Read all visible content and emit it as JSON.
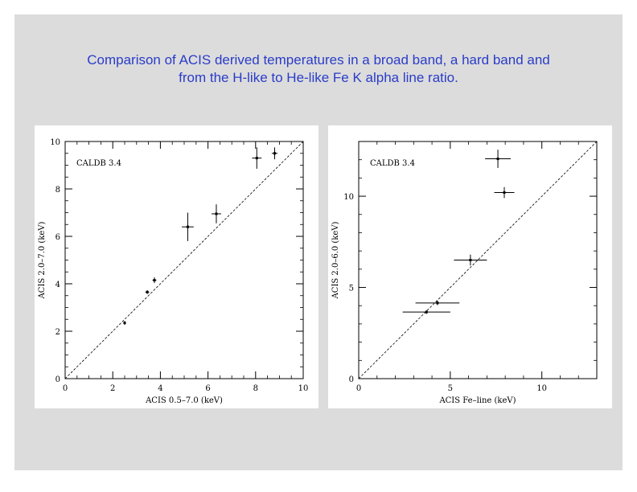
{
  "title": {
    "line1": "Comparison of ACIS derived temperatures in a broad band, a hard band and",
    "line2": "from the H-like to He-like Fe K alpha line ratio."
  },
  "chart_data": [
    {
      "type": "scatter",
      "annotation": "CALDB 3.4",
      "xlabel": "ACIS 0.5–7.0 (keV)",
      "ylabel": "ACIS 2.0–7.0 (keV)",
      "xlim": [
        0,
        10
      ],
      "ylim": [
        0,
        10
      ],
      "xticks": [
        0,
        2,
        4,
        6,
        8,
        10
      ],
      "yticks": [
        0,
        2,
        4,
        6,
        8,
        10
      ],
      "reference_line": "y = x (dashed)",
      "points": [
        {
          "x": 2.5,
          "y": 2.35,
          "xerr": 0.05,
          "yerr": 0.08
        },
        {
          "x": 3.45,
          "y": 3.65,
          "xerr": 0.08,
          "yerr": 0.08
        },
        {
          "x": 3.75,
          "y": 4.15,
          "xerr": 0.08,
          "yerr": 0.12
        },
        {
          "x": 5.15,
          "y": 6.4,
          "xerr": 0.25,
          "yerr": 0.6
        },
        {
          "x": 6.35,
          "y": 6.95,
          "xerr": 0.2,
          "yerr": 0.4
        },
        {
          "x": 8.05,
          "y": 9.3,
          "xerr": 0.2,
          "yerr": 0.45
        },
        {
          "x": 8.8,
          "y": 9.5,
          "xerr": 0.12,
          "yerr": 0.25
        }
      ]
    },
    {
      "type": "scatter",
      "annotation": "CALDB 3.4",
      "xlabel": "ACIS Fe–line (keV)",
      "ylabel": "ACIS 2.0–6.0 (keV)",
      "xlim": [
        0,
        13
      ],
      "ylim": [
        0,
        13
      ],
      "xticks": [
        0,
        5,
        10
      ],
      "yticks": [
        0,
        5,
        10
      ],
      "reference_line": "y = x (dashed)",
      "points": [
        {
          "x": 3.7,
          "y": 3.65,
          "xerr": 1.3,
          "yerr": 0.1
        },
        {
          "x": 4.3,
          "y": 4.15,
          "xerr": 1.2,
          "yerr": 0.12
        },
        {
          "x": 6.1,
          "y": 6.5,
          "xerr": 0.9,
          "yerr": 0.3
        },
        {
          "x": 7.6,
          "y": 12.05,
          "xerr": 0.7,
          "yerr": 0.5
        },
        {
          "x": 7.95,
          "y": 10.2,
          "xerr": 0.55,
          "yerr": 0.3
        }
      ]
    }
  ]
}
